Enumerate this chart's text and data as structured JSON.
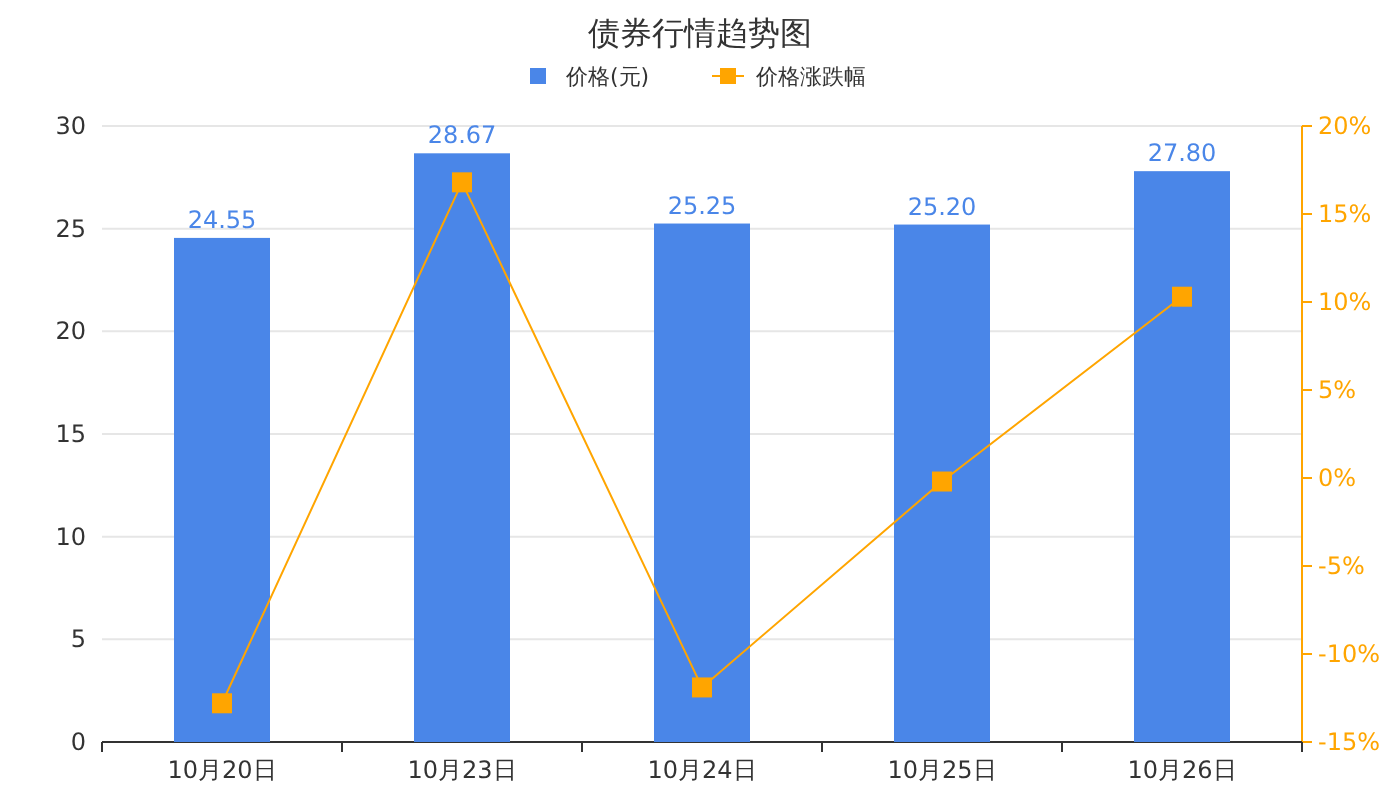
{
  "chart_data": {
    "type": "bar",
    "title": "债券行情趋势图",
    "categories": [
      "10月20日",
      "10月23日",
      "10月24日",
      "10月25日",
      "10月26日"
    ],
    "series": [
      {
        "name": "价格(元)",
        "color": "#4a86e8",
        "values": [
          24.55,
          28.67,
          25.25,
          25.2,
          27.8
        ],
        "value_labels": [
          "24.55",
          "28.67",
          "25.25",
          "25.20",
          "27.80"
        ]
      },
      {
        "name": "价格涨跌幅",
        "type": "line",
        "axis": "y2",
        "color": "#ffa500",
        "marker": "square",
        "values": [
          -12.8,
          16.8,
          -11.9,
          -0.2,
          10.3
        ]
      }
    ],
    "ylim": [
      0,
      30
    ],
    "yticks": [
      0,
      5,
      10,
      15,
      20,
      25,
      30
    ],
    "y2lim": [
      -15,
      20
    ],
    "y2ticks": [
      {
        "value": -15,
        "label": "-15%"
      },
      {
        "value": -10,
        "label": "-10%"
      },
      {
        "value": -5,
        "label": "-5%"
      },
      {
        "value": 0,
        "label": "0%"
      },
      {
        "value": 5,
        "label": "5%"
      },
      {
        "value": 10,
        "label": "10%"
      },
      {
        "value": 15,
        "label": "15%"
      },
      {
        "value": 20,
        "label": "20%"
      }
    ],
    "grid": "y",
    "legend": "top"
  }
}
